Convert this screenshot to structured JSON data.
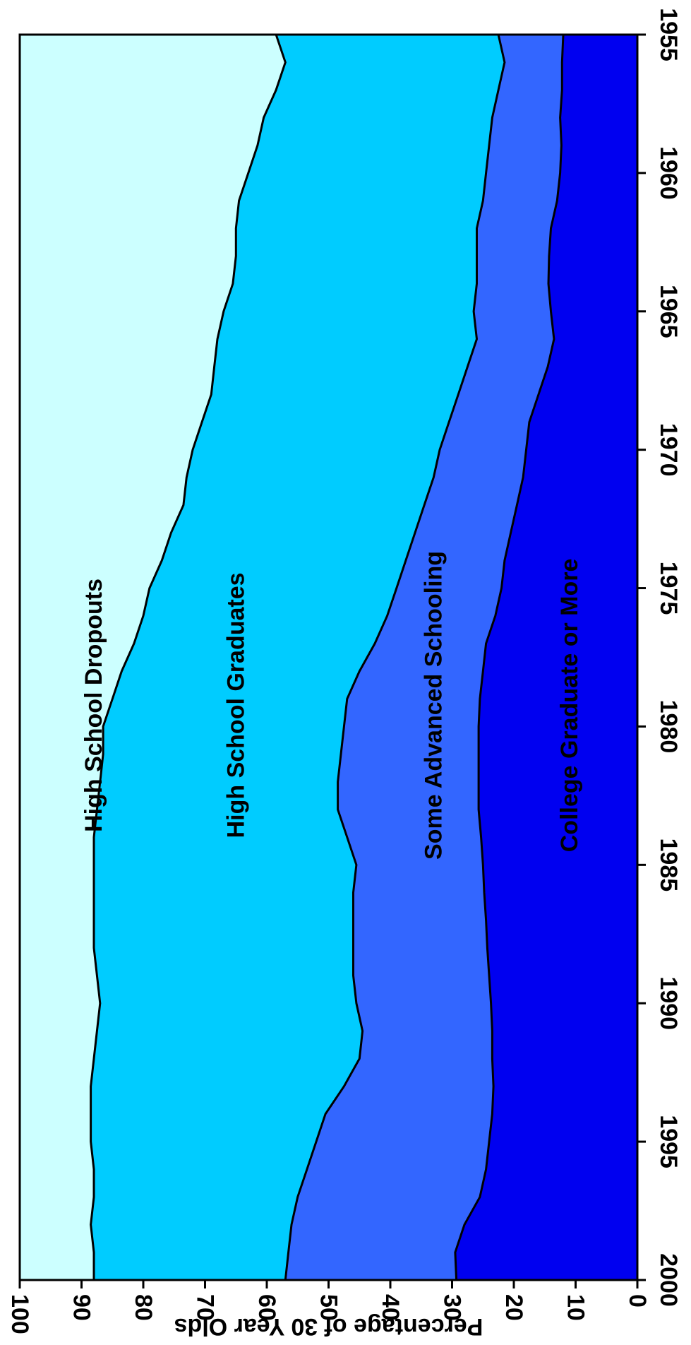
{
  "chart_data": {
    "type": "area",
    "stacked": true,
    "orientation": "rotated-90-clockwise",
    "title": "",
    "xlabel": "",
    "ylabel": "Percentage of 30 Year Olds",
    "xlim": [
      1955,
      2000
    ],
    "ylim": [
      0,
      100
    ],
    "x_ticks": [
      1955,
      1960,
      1965,
      1970,
      1975,
      1980,
      1985,
      1990,
      1995,
      2000
    ],
    "y_ticks": [
      0,
      10,
      20,
      30,
      40,
      50,
      60,
      70,
      80,
      90,
      100
    ],
    "grid": false,
    "legend": "none",
    "x": [
      1955,
      1956,
      1957,
      1958,
      1959,
      1960,
      1961,
      1962,
      1963,
      1964,
      1965,
      1966,
      1967,
      1968,
      1969,
      1970,
      1971,
      1972,
      1973,
      1974,
      1975,
      1976,
      1977,
      1978,
      1979,
      1980,
      1981,
      1982,
      1983,
      1984,
      1985,
      1986,
      1987,
      1988,
      1989,
      1990,
      1991,
      1992,
      1993,
      1994,
      1995,
      1996,
      1997,
      1998,
      1999,
      2000
    ],
    "boundaries": [
      {
        "name": "College Graduate or More",
        "top": [
          12.0,
          12.2,
          12.2,
          12.5,
          12.3,
          12.5,
          13.0,
          14.0,
          14.3,
          14.4,
          14.0,
          13.5,
          14.5,
          16.0,
          17.5,
          18.0,
          18.5,
          19.5,
          20.5,
          21.5,
          22.0,
          23.0,
          24.5,
          25.0,
          25.5,
          25.7,
          25.7,
          25.7,
          25.7,
          25.3,
          25.0,
          24.8,
          24.5,
          24.3,
          24.0,
          23.7,
          23.5,
          23.5,
          23.3,
          23.5,
          24.0,
          24.5,
          25.5,
          28.0,
          29.5,
          29.3
        ]
      },
      {
        "name": "Some Advanced Schooling",
        "top": [
          22.5,
          21.5,
          22.5,
          23.5,
          24.0,
          24.5,
          25.0,
          26.0,
          26.0,
          26.0,
          26.5,
          26.0,
          27.5,
          29.0,
          30.5,
          32.0,
          33.0,
          34.5,
          36.0,
          37.5,
          39.0,
          40.5,
          42.5,
          45.0,
          47.0,
          47.5,
          48.0,
          48.5,
          48.5,
          47.0,
          45.5,
          46.0,
          46.0,
          46.0,
          46.0,
          45.5,
          44.5,
          45.0,
          47.5,
          50.5,
          52.0,
          53.5,
          55.0,
          56.0,
          56.5,
          57.0
        ]
      },
      {
        "name": "High School Graduates",
        "top": [
          58.5,
          57.0,
          58.5,
          60.5,
          61.5,
          63.0,
          64.5,
          65.0,
          65.0,
          65.5,
          67.0,
          68.0,
          68.5,
          69.0,
          70.5,
          72.0,
          73.0,
          73.5,
          75.5,
          77.0,
          79.0,
          80.0,
          81.5,
          83.5,
          85.0,
          86.5,
          86.5,
          87.0,
          87.5,
          88.0,
          88.0,
          88.0,
          88.0,
          88.0,
          87.5,
          87.0,
          87.5,
          88.0,
          88.5,
          88.5,
          88.5,
          88.0,
          88.0,
          88.5,
          88.0,
          88.0
        ]
      },
      {
        "name": "High School Dropouts",
        "top": [
          100,
          100,
          100,
          100,
          100,
          100,
          100,
          100,
          100,
          100,
          100,
          100,
          100,
          100,
          100,
          100,
          100,
          100,
          100,
          100,
          100,
          100,
          100,
          100,
          100,
          100,
          100,
          100,
          100,
          100,
          100,
          100,
          100,
          100,
          100,
          100,
          100,
          100,
          100,
          100,
          100,
          100,
          100,
          100,
          100,
          100
        ]
      }
    ],
    "annotations": [
      {
        "text": "College Graduate or More",
        "x": 1980,
        "y": 11
      },
      {
        "text": "Some Advanced Schooling",
        "x": 1980,
        "y": 33
      },
      {
        "text": "High School Graduates",
        "x": 1980,
        "y": 65
      },
      {
        "text": "High School Dropouts",
        "x": 1980,
        "y": 88
      }
    ],
    "colors": {
      "College Graduate or More": "#0000f0",
      "Some Advanced Schooling": "#3366ff",
      "High School Graduates": "#00ccff",
      "High School Dropouts": "#ccffff",
      "outline": "#000000"
    }
  }
}
